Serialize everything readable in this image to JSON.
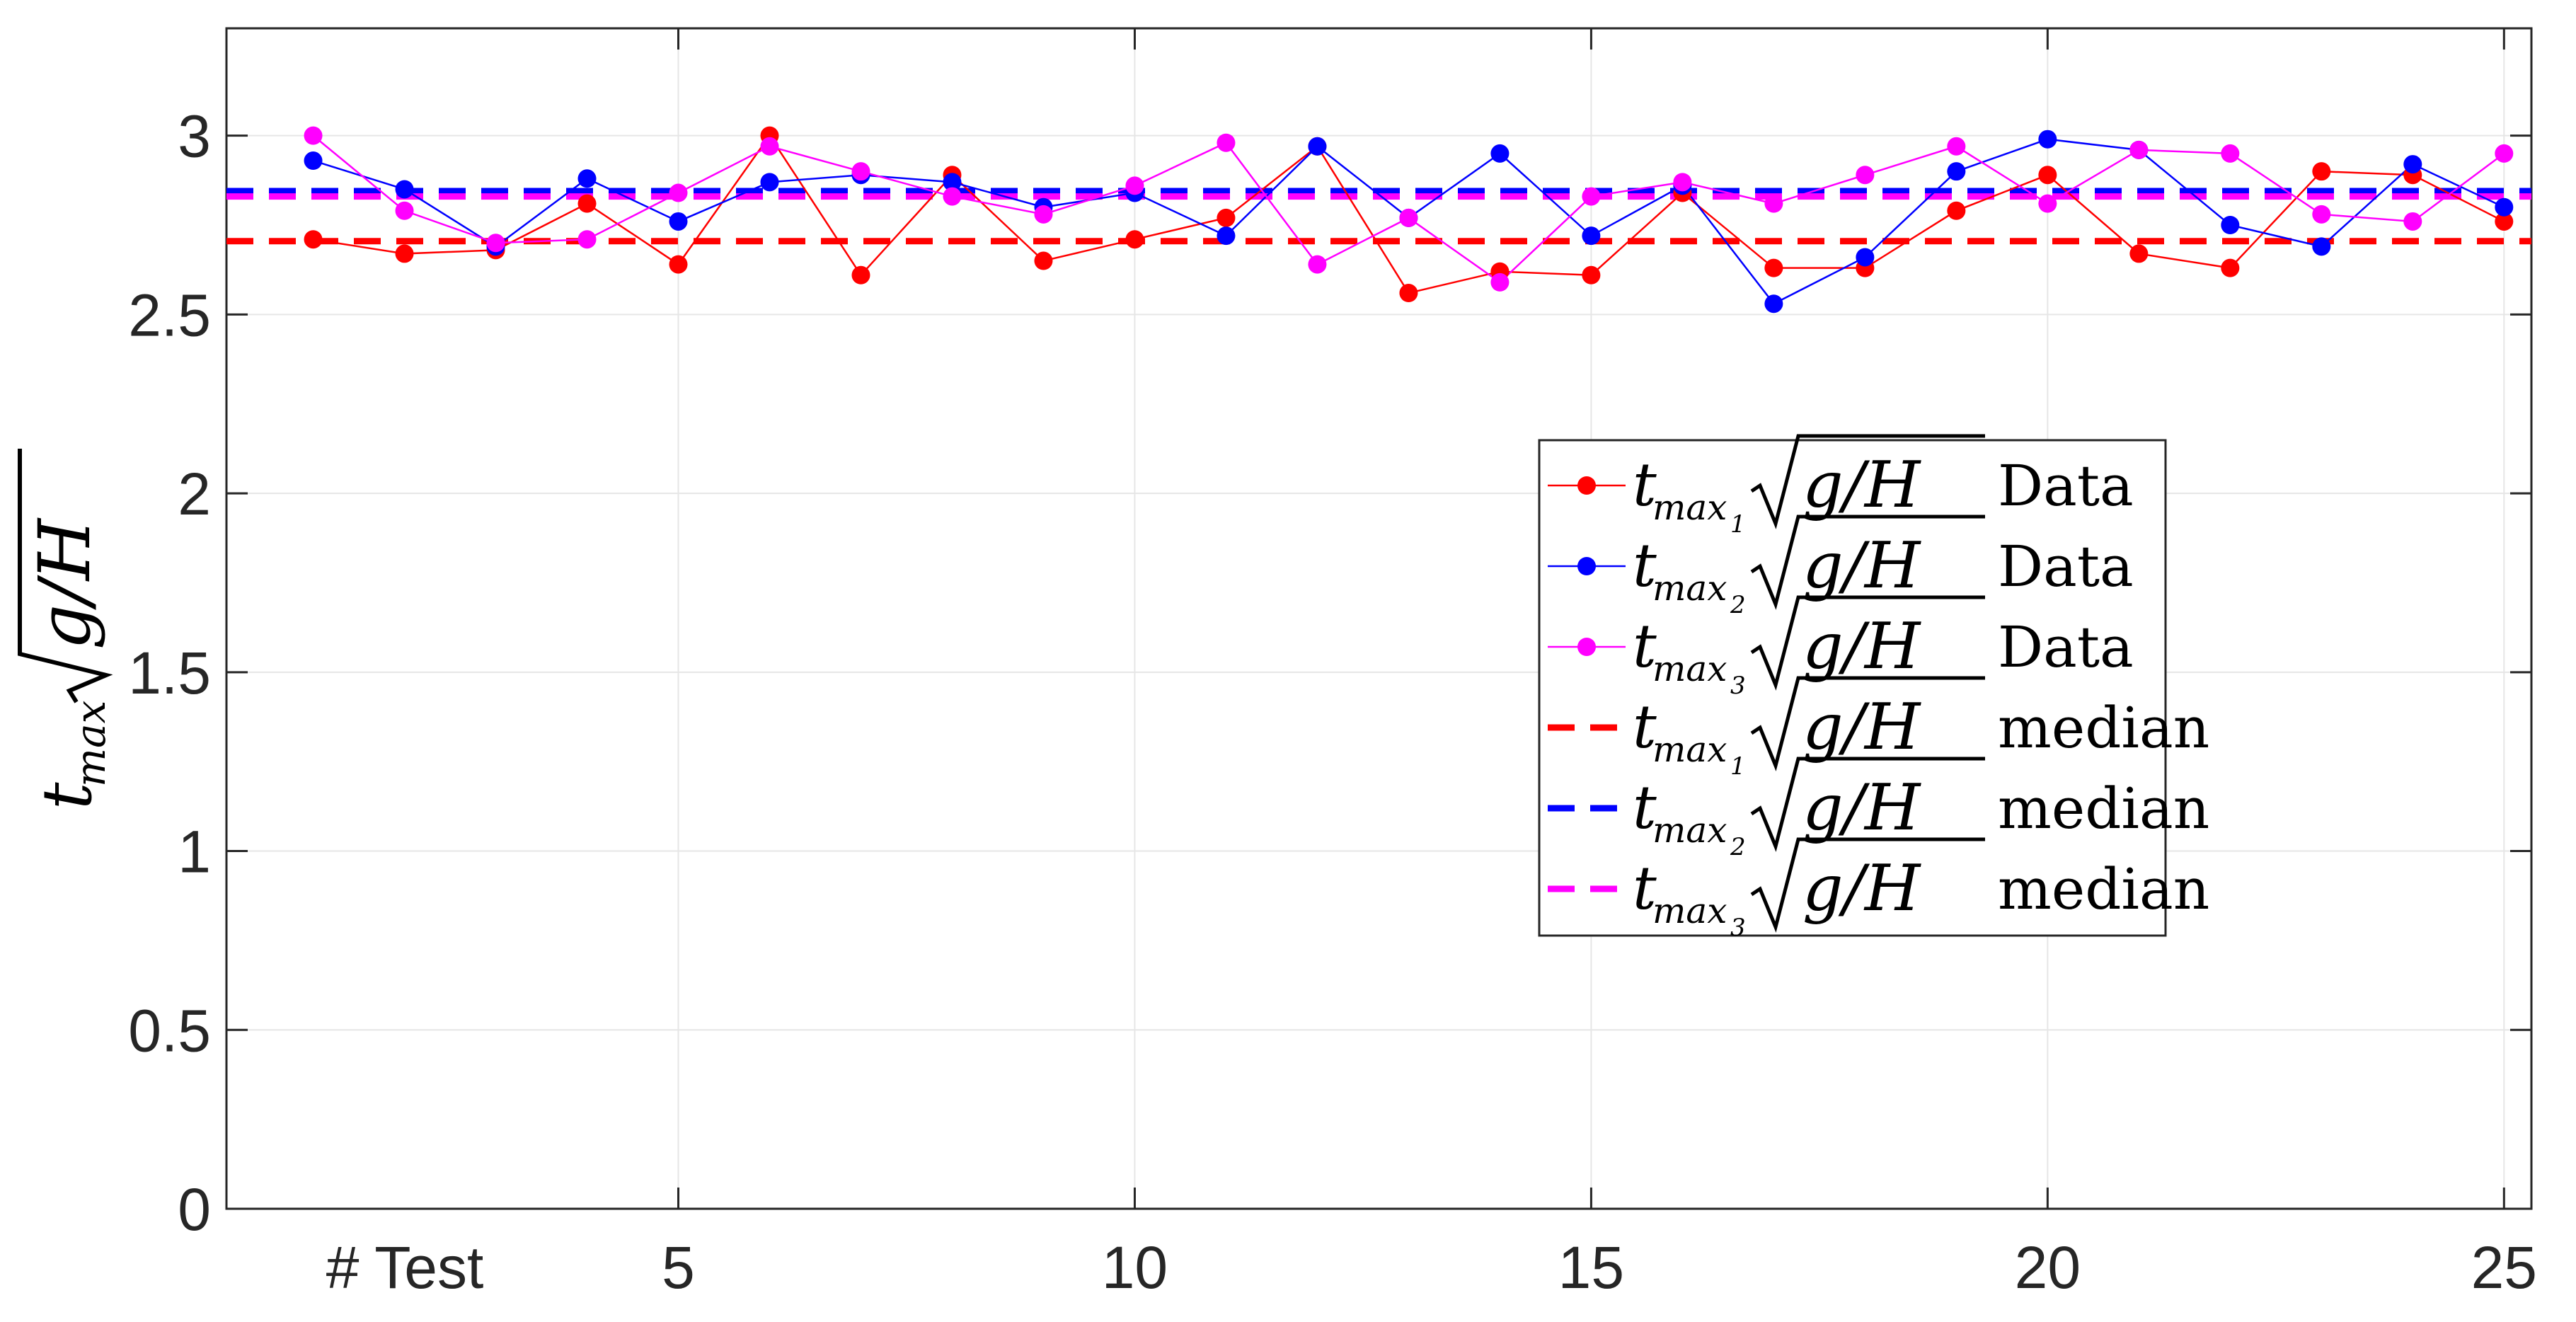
{
  "chart_data": {
    "type": "line",
    "xlabel": "# Test",
    "ylabel": {
      "base": "t",
      "sub": "max",
      "radicand": "g/H"
    },
    "xlim": [
      0.05,
      25.3
    ],
    "ylim": [
      0,
      3.3
    ],
    "x_ticks": [
      5,
      10,
      15,
      20,
      25
    ],
    "y_ticks": [
      0,
      0.5,
      1,
      1.5,
      2,
      2.5,
      3
    ],
    "y_tick_labels": [
      "0",
      "0.5",
      "1",
      "1.5",
      "2",
      "2.5",
      "3"
    ],
    "grid": true,
    "legend_position": "center-right",
    "x": [
      1,
      2,
      3,
      4,
      5,
      6,
      7,
      8,
      9,
      10,
      11,
      12,
      13,
      14,
      15,
      16,
      17,
      18,
      19,
      20,
      21,
      22,
      23,
      24,
      25
    ],
    "series": [
      {
        "name": {
          "sub": "1",
          "suffix": "Data"
        },
        "color": "#ff0000",
        "style": "solid-marker",
        "values": [
          2.71,
          2.67,
          2.68,
          2.81,
          2.64,
          3.0,
          2.61,
          2.89,
          2.65,
          2.71,
          2.77,
          2.97,
          2.56,
          2.62,
          2.61,
          2.84,
          2.63,
          2.63,
          2.79,
          2.89,
          2.67,
          2.63,
          2.9,
          2.89,
          2.76
        ]
      },
      {
        "name": {
          "sub": "2",
          "suffix": "Data"
        },
        "color": "#0000ff",
        "style": "solid-marker",
        "values": [
          2.93,
          2.85,
          2.69,
          2.88,
          2.76,
          2.87,
          2.89,
          2.87,
          2.8,
          2.84,
          2.72,
          2.97,
          2.77,
          2.95,
          2.72,
          2.86,
          2.53,
          2.66,
          2.9,
          2.99,
          2.96,
          2.75,
          2.69,
          2.92,
          2.8
        ]
      },
      {
        "name": {
          "sub": "3",
          "suffix": "Data"
        },
        "color": "#ff00ff",
        "style": "solid-marker",
        "values": [
          3.0,
          2.79,
          2.7,
          2.71,
          2.84,
          2.97,
          2.9,
          2.83,
          2.78,
          2.86,
          2.98,
          2.64,
          2.77,
          2.59,
          2.83,
          2.87,
          2.81,
          2.89,
          2.97,
          2.81,
          2.96,
          2.95,
          2.78,
          2.76,
          2.95
        ]
      },
      {
        "name": {
          "sub": "1",
          "suffix": "median"
        },
        "color": "#ff0000",
        "style": "dashed",
        "value": 2.705
      },
      {
        "name": {
          "sub": "2",
          "suffix": "median"
        },
        "color": "#0000ff",
        "style": "dashed",
        "value": 2.845
      },
      {
        "name": {
          "sub": "3",
          "suffix": "median"
        },
        "color": "#ff00ff",
        "style": "dashed",
        "value": 2.83
      }
    ]
  }
}
